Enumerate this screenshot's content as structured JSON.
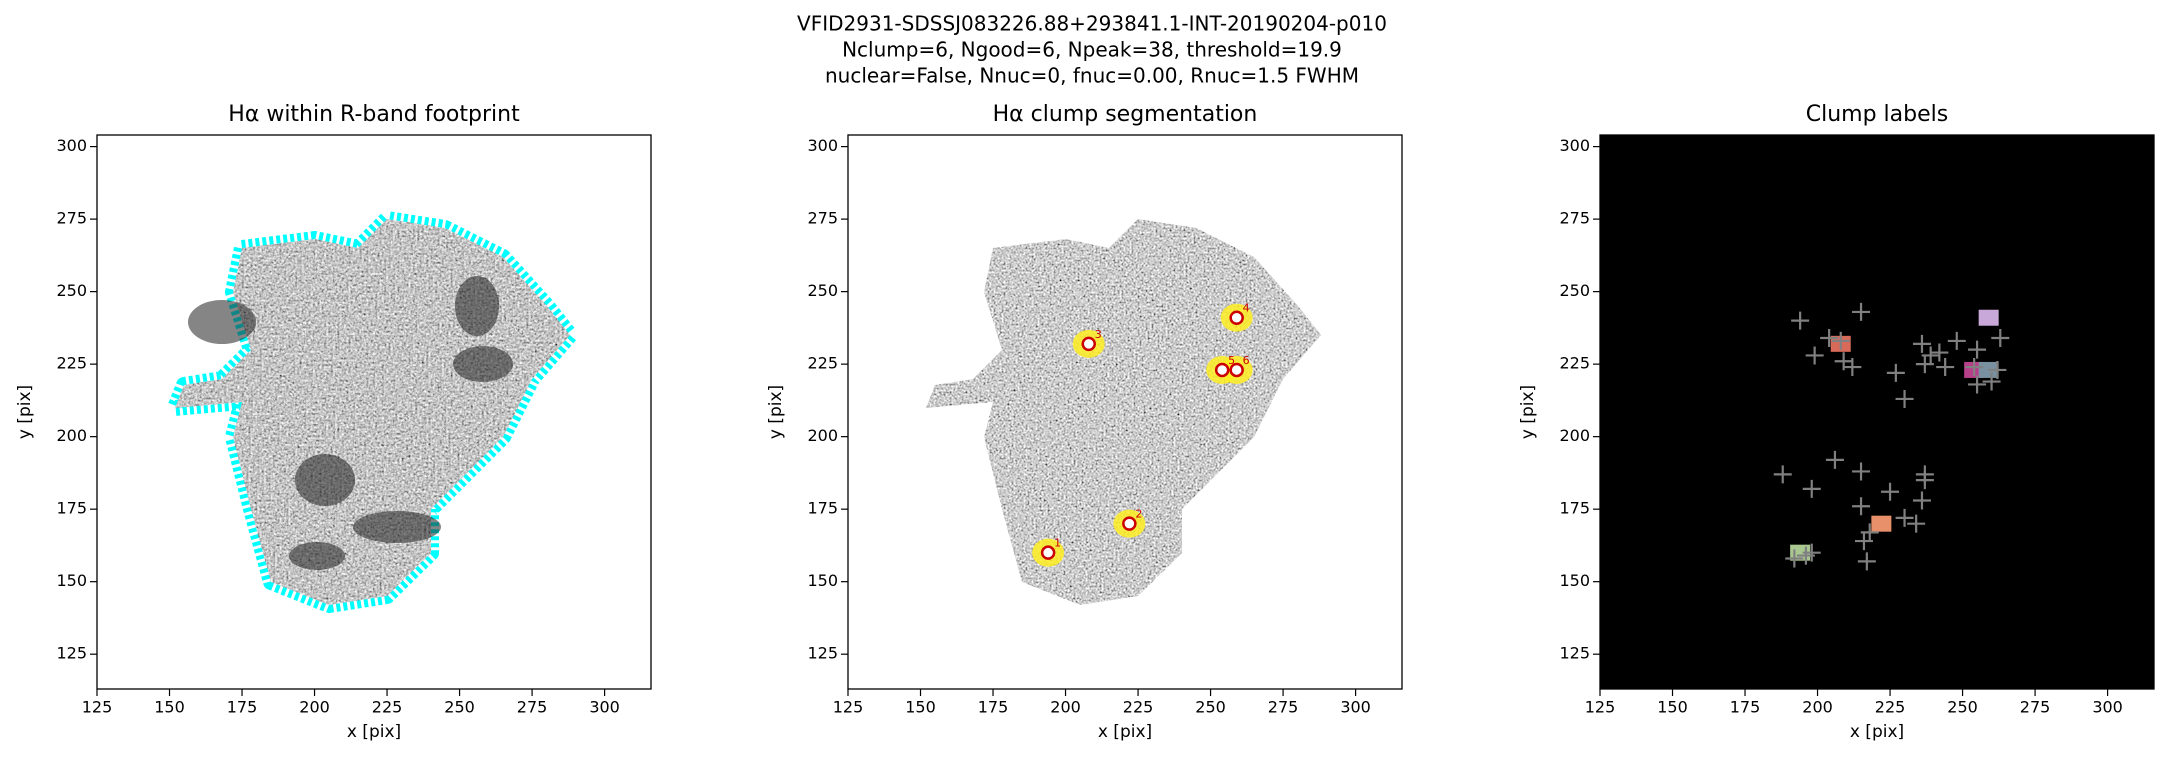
{
  "suptitle": [
    "VFID2931-SDSSJ083226.88+293841.1-INT-20190204-p010",
    "Nclump=6, Ngood=6, Npeak=38, threshold=19.9",
    "nuclear=False, Nnuc=0, fnuc=0.00, Rnuc=1.5 FWHM"
  ],
  "chart_data": [
    {
      "type": "image",
      "title": "Hα within R-band footprint",
      "xlabel": "x [pix]",
      "ylabel": "y [pix]",
      "xlim": [
        125,
        316
      ],
      "ylim": [
        113,
        304
      ],
      "xticks": [
        125,
        150,
        175,
        200,
        225,
        250,
        275,
        300
      ],
      "yticks": [
        125,
        150,
        175,
        200,
        225,
        250,
        275,
        300
      ],
      "footprint_color": "#00ffff"
    },
    {
      "type": "image",
      "title": "Hα clump segmentation",
      "xlabel": "x [pix]",
      "ylabel": "y [pix]",
      "xlim": [
        125,
        316
      ],
      "ylim": [
        113,
        304
      ],
      "xticks": [
        125,
        150,
        175,
        200,
        225,
        250,
        275,
        300
      ],
      "yticks": [
        125,
        150,
        175,
        200,
        225,
        250,
        275,
        300
      ],
      "clumps": {
        "x": [
          194,
          222,
          208,
          259,
          254,
          259
        ],
        "y": [
          160,
          170,
          232,
          241,
          223,
          223
        ],
        "labels": [
          "1",
          "2",
          "3",
          "4",
          "5",
          "6"
        ],
        "color": "#cc0000",
        "mask_color": "#ffee22"
      }
    },
    {
      "type": "image",
      "title": "Clump labels",
      "xlabel": "x [pix]",
      "ylabel": "y [pix]",
      "xlim": [
        125,
        316
      ],
      "ylim": [
        113,
        304
      ],
      "xticks": [
        125,
        150,
        175,
        200,
        225,
        250,
        275,
        300
      ],
      "yticks": [
        125,
        150,
        175,
        200,
        225,
        250,
        275,
        300
      ],
      "background": "#000000",
      "segments": {
        "x": [
          194,
          222,
          208,
          259,
          254,
          259
        ],
        "y": [
          160,
          170,
          232,
          241,
          223,
          223
        ],
        "colors": [
          "#a8c890",
          "#e8906a",
          "#d86a5a",
          "#c8a8d8",
          "#b8408a",
          "#7890a0"
        ]
      },
      "peaks": {
        "color": "#808080",
        "x": [
          194,
          215,
          199,
          212,
          236,
          239,
          230,
          248,
          255,
          263,
          255,
          260,
          262,
          242,
          188,
          206,
          198,
          215,
          237,
          237,
          236,
          225,
          215,
          218,
          216,
          217,
          230,
          234,
          196,
          198,
          192,
          204,
          208,
          209,
          244,
          237,
          227,
          254
        ],
        "y": [
          240,
          243,
          228,
          224,
          232,
          228,
          213,
          233,
          230,
          234,
          218,
          219,
          223,
          229,
          187,
          192,
          182,
          188,
          187,
          185,
          178,
          181,
          176,
          167,
          164,
          157,
          172,
          170,
          159,
          160,
          158,
          234,
          233,
          226,
          224,
          225,
          222,
          224
        ]
      }
    }
  ]
}
